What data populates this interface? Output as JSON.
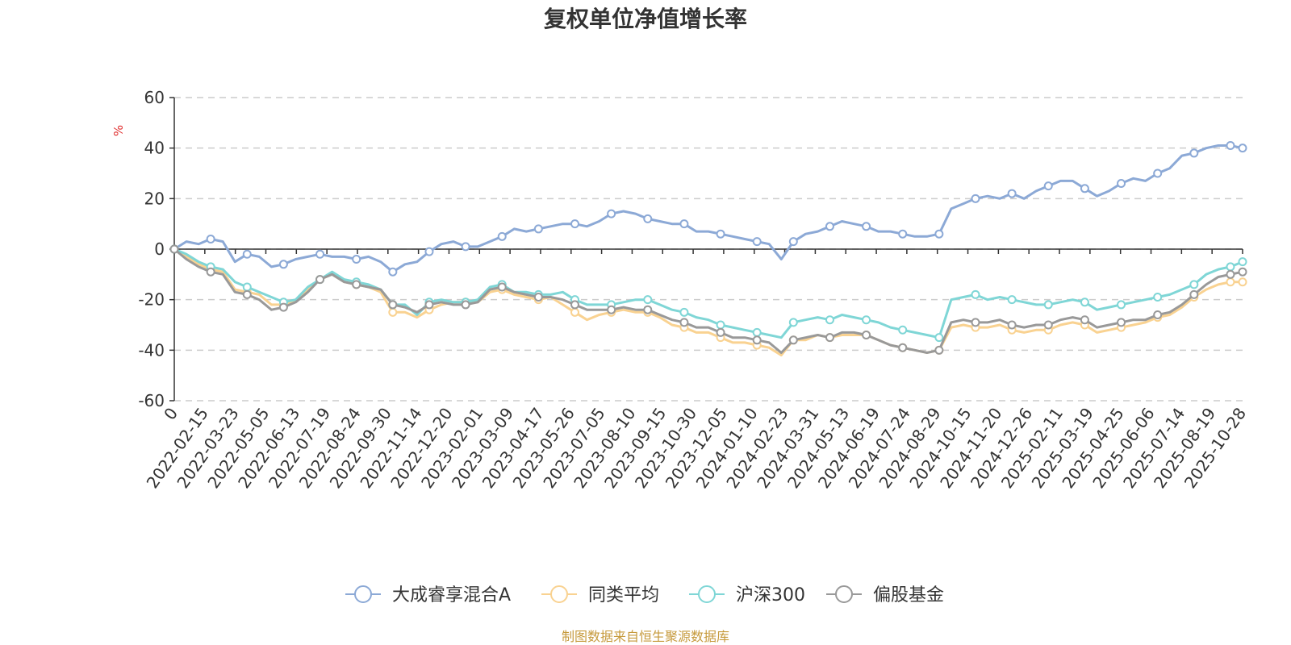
{
  "chart_data": {
    "type": "line",
    "title": "复权单位净值增长率",
    "ylabel": "%",
    "ylim": [
      -60,
      60
    ],
    "yticks": [
      60,
      40,
      20,
      0,
      -20,
      -40,
      -60
    ],
    "x_tick_labels": [
      "0",
      "2022-02-15",
      "2022-03-23",
      "2022-05-05",
      "2022-06-13",
      "2022-07-19",
      "2022-08-24",
      "2022-09-30",
      "2022-11-14",
      "2022-12-20",
      "2023-02-01",
      "2023-03-09",
      "2023-04-17",
      "2023-05-26",
      "2023-07-05",
      "2023-08-10",
      "2023-09-15",
      "2023-10-30",
      "2023-12-05",
      "2024-01-10",
      "2024-02-23",
      "2024-03-31",
      "2024-05-13",
      "2024-06-19",
      "2024-07-24",
      "2024-08-29",
      "2024-10-15",
      "2024-11-20",
      "2024-12-26",
      "2025-02-11",
      "2025-03-19",
      "2025-04-25",
      "2025-06-06",
      "2025-07-14",
      "2025-08-19",
      "2025-10-28"
    ],
    "series": [
      {
        "name": "大成睿享混合A",
        "color": "#8CA9D6",
        "values": [
          0,
          3,
          2,
          4,
          3,
          -5,
          -2,
          -3,
          -7,
          -6,
          -4,
          -3,
          -2,
          -3,
          -3,
          -4,
          -3,
          -5,
          -9,
          -6,
          -5,
          -1,
          2,
          3,
          1,
          1,
          3,
          5,
          8,
          7,
          8,
          9,
          10,
          10,
          9,
          11,
          14,
          15,
          14,
          12,
          11,
          10,
          10,
          7,
          7,
          6,
          5,
          4,
          3,
          2,
          -4,
          3,
          6,
          7,
          9,
          11,
          10,
          9,
          7,
          7,
          6,
          5,
          5,
          6,
          16,
          18,
          20,
          21,
          20,
          22,
          20,
          23,
          25,
          27,
          27,
          24,
          21,
          23,
          26,
          28,
          27,
          30,
          32,
          37,
          38,
          40,
          41,
          41,
          40
        ]
      },
      {
        "name": "同类平均",
        "color": "#F9D291",
        "values": [
          0,
          -3,
          -6,
          -8,
          -9,
          -16,
          -17,
          -18,
          -22,
          -22,
          -20,
          -16,
          -12,
          -10,
          -13,
          -14,
          -15,
          -17,
          -25,
          -25,
          -27,
          -24,
          -22,
          -21,
          -21,
          -21,
          -17,
          -16,
          -18,
          -19,
          -20,
          -19,
          -22,
          -25,
          -28,
          -26,
          -25,
          -24,
          -25,
          -25,
          -27,
          -30,
          -31,
          -33,
          -33,
          -35,
          -37,
          -37,
          -38,
          -39,
          -42,
          -36,
          -36,
          -34,
          -35,
          -34,
          -34,
          -34,
          -36,
          -38,
          -39,
          -40,
          -41,
          -40,
          -31,
          -30,
          -31,
          -31,
          -30,
          -32,
          -33,
          -32,
          -32,
          -30,
          -29,
          -30,
          -33,
          -32,
          -31,
          -30,
          -29,
          -27,
          -26,
          -23,
          -19,
          -16,
          -14,
          -13,
          -13
        ]
      },
      {
        "name": "沪深300",
        "color": "#7FD6D6",
        "values": [
          0,
          -2,
          -5,
          -7,
          -8,
          -13,
          -15,
          -17,
          -19,
          -21,
          -20,
          -15,
          -12,
          -9,
          -12,
          -13,
          -14,
          -16,
          -22,
          -22,
          -26,
          -21,
          -20,
          -21,
          -21,
          -20,
          -15,
          -14,
          -17,
          -17,
          -18,
          -18,
          -17,
          -20,
          -22,
          -22,
          -22,
          -21,
          -20,
          -20,
          -22,
          -24,
          -25,
          -27,
          -28,
          -30,
          -31,
          -32,
          -33,
          -34,
          -35,
          -29,
          -28,
          -27,
          -28,
          -26,
          -27,
          -28,
          -29,
          -31,
          -32,
          -33,
          -34,
          -35,
          -20,
          -19,
          -18,
          -20,
          -19,
          -20,
          -21,
          -22,
          -22,
          -21,
          -20,
          -21,
          -24,
          -23,
          -22,
          -21,
          -20,
          -19,
          -18,
          -16,
          -14,
          -10,
          -8,
          -7,
          -5
        ]
      },
      {
        "name": "偏股基金",
        "color": "#999999",
        "values": [
          0,
          -4,
          -7,
          -9,
          -10,
          -17,
          -18,
          -20,
          -24,
          -23,
          -21,
          -17,
          -12,
          -10,
          -13,
          -14,
          -15,
          -16,
          -22,
          -23,
          -25,
          -22,
          -21,
          -22,
          -22,
          -21,
          -16,
          -15,
          -17,
          -18,
          -19,
          -19,
          -20,
          -22,
          -24,
          -24,
          -24,
          -23,
          -24,
          -24,
          -26,
          -28,
          -29,
          -31,
          -31,
          -33,
          -35,
          -35,
          -36,
          -37,
          -41,
          -36,
          -35,
          -34,
          -35,
          -33,
          -33,
          -34,
          -36,
          -38,
          -39,
          -40,
          -41,
          -40,
          -29,
          -28,
          -29,
          -29,
          -28,
          -30,
          -31,
          -30,
          -30,
          -28,
          -27,
          -28,
          -31,
          -30,
          -29,
          -28,
          -28,
          -26,
          -25,
          -22,
          -18,
          -14,
          -11,
          -10,
          -9
        ]
      }
    ]
  },
  "legend": [
    {
      "label": "大成睿享混合A"
    },
    {
      "label": "同类平均"
    },
    {
      "label": "沪深300"
    },
    {
      "label": "偏股基金"
    }
  ],
  "source_note": "制图数据来自恒生聚源数据库",
  "colors": {
    "source": "#C69A3C",
    "ylabel": "#E03030",
    "grid": "#CCCCCC",
    "axis": "#333333"
  }
}
